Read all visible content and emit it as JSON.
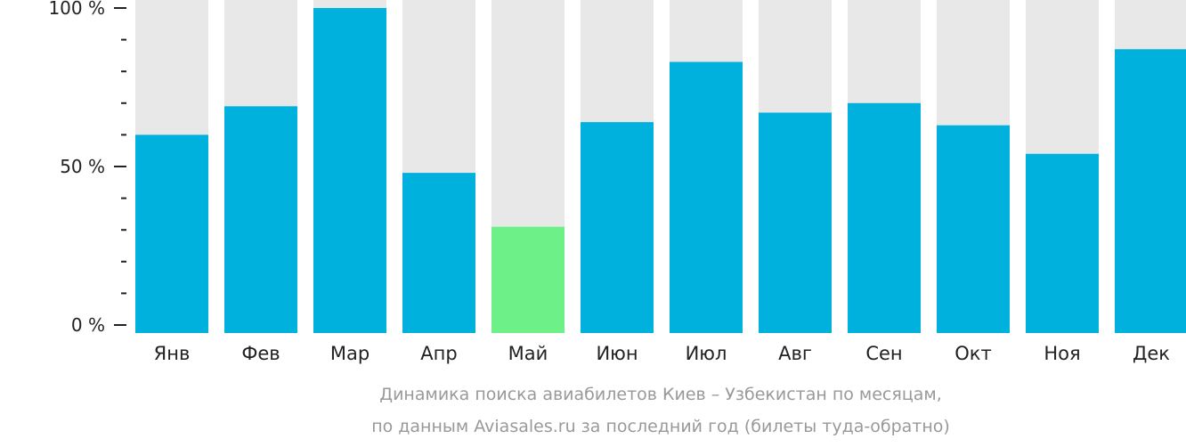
{
  "chart_data": {
    "type": "bar",
    "categories": [
      "Янв",
      "Фев",
      "Мар",
      "Апр",
      "Май",
      "Июн",
      "Июл",
      "Авг",
      "Сен",
      "Окт",
      "Ноя",
      "Дек"
    ],
    "values": [
      60,
      69,
      100,
      48,
      31,
      64,
      83,
      67,
      70,
      63,
      54,
      87
    ],
    "highlight_index": 4,
    "ylim": [
      0,
      100
    ],
    "yticks": [
      {
        "value": 0,
        "label": "0 %"
      },
      {
        "value": 50,
        "label": "50 %"
      },
      {
        "value": 100,
        "label": "100 %"
      }
    ],
    "minor_tick_step": 10,
    "colors": {
      "bar": "#00b0dd",
      "highlight": "#6cf087",
      "background_bar": "#e8e8e8",
      "axis": "#222222"
    },
    "caption": [
      "Динамика поиска авиабилетов Киев – Узбекистан по месяцам,",
      "по данным Aviasales.ru за последний год (билеты туда-обратно)"
    ]
  }
}
